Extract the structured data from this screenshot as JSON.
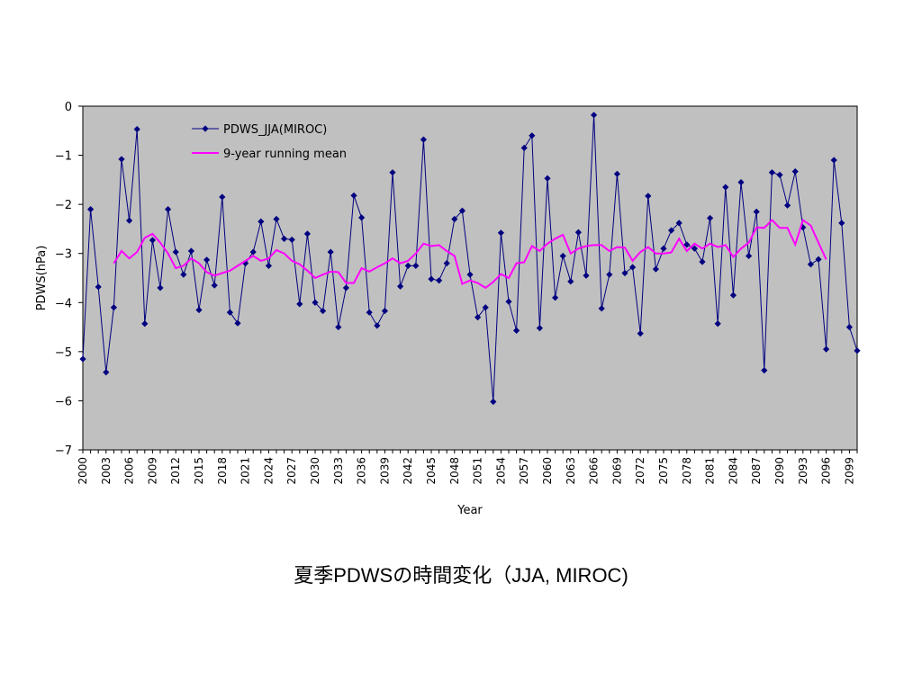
{
  "caption": "夏季PDWSの時間変化（JJA, MIROC)",
  "chart_data": {
    "type": "line",
    "xlabel": "Year",
    "ylabel": "PDWS(hPa)",
    "xlim": [
      2000,
      2100
    ],
    "ylim": [
      -7,
      0
    ],
    "yticks": [
      0,
      -1,
      -2,
      -3,
      -4,
      -5,
      -6,
      -7
    ],
    "xticks": [
      2000,
      2003,
      2006,
      2009,
      2012,
      2015,
      2018,
      2021,
      2024,
      2027,
      2030,
      2033,
      2036,
      2039,
      2042,
      2045,
      2048,
      2051,
      2054,
      2057,
      2060,
      2063,
      2066,
      2069,
      2072,
      2075,
      2078,
      2081,
      2084,
      2087,
      2090,
      2093,
      2096,
      2099
    ],
    "legend_position": "top-left",
    "background": "#c0c0c0",
    "series": [
      {
        "name": "PDWS_JJA(MIROC)",
        "color": "#000080",
        "marker": "diamond",
        "x": [
          2000,
          2001,
          2002,
          2003,
          2004,
          2005,
          2006,
          2007,
          2008,
          2009,
          2010,
          2011,
          2012,
          2013,
          2014,
          2015,
          2016,
          2017,
          2018,
          2019,
          2020,
          2021,
          2022,
          2023,
          2024,
          2025,
          2026,
          2027,
          2028,
          2029,
          2030,
          2031,
          2032,
          2033,
          2034,
          2035,
          2036,
          2037,
          2038,
          2039,
          2040,
          2041,
          2042,
          2043,
          2044,
          2045,
          2046,
          2047,
          2048,
          2049,
          2050,
          2051,
          2052,
          2053,
          2054,
          2055,
          2056,
          2057,
          2058,
          2059,
          2060,
          2061,
          2062,
          2063,
          2064,
          2065,
          2066,
          2067,
          2068,
          2069,
          2070,
          2071,
          2072,
          2073,
          2074,
          2075,
          2076,
          2077,
          2078,
          2079,
          2080,
          2081,
          2082,
          2083,
          2084,
          2085,
          2086,
          2087,
          2088,
          2089,
          2090,
          2091,
          2092,
          2093,
          2094,
          2095,
          2096,
          2097,
          2098,
          2099,
          2100
        ],
        "values": [
          -5.15,
          -2.1,
          -3.68,
          -5.42,
          -4.1,
          -1.08,
          -2.33,
          -0.47,
          -4.43,
          -2.73,
          -3.7,
          -2.1,
          -2.97,
          -3.43,
          -2.95,
          -4.15,
          -3.13,
          -3.65,
          -1.85,
          -4.2,
          -4.42,
          -3.2,
          -2.97,
          -2.35,
          -3.25,
          -2.3,
          -2.7,
          -2.72,
          -4.03,
          -2.6,
          -4.0,
          -4.17,
          -2.97,
          -4.5,
          -3.7,
          -1.82,
          -2.27,
          -4.2,
          -4.47,
          -4.17,
          -1.35,
          -3.67,
          -3.25,
          -3.25,
          -0.68,
          -3.52,
          -3.55,
          -3.2,
          -2.3,
          -2.13,
          -3.43,
          -4.3,
          -4.1,
          -6.02,
          -2.58,
          -3.98,
          -4.57,
          -0.85,
          -0.6,
          -4.52,
          -1.47,
          -3.9,
          -3.05,
          -3.57,
          -2.57,
          -3.45,
          -0.18,
          -4.12,
          -3.43,
          -1.38,
          -3.4,
          -3.28,
          -4.63,
          -1.83,
          -3.32,
          -2.9,
          -2.53,
          -2.38,
          -2.82,
          -2.9,
          -3.17,
          -2.28,
          -4.43,
          -1.65,
          -3.85,
          -1.55,
          -3.05,
          -2.15,
          -5.38,
          -1.35,
          -1.4,
          -2.02,
          -1.33,
          -2.47,
          -3.22,
          -3.12,
          -4.95,
          -1.1,
          -2.38,
          -4.5,
          -4.98
        ]
      },
      {
        "name": "9-year running mean",
        "color": "#ff00ff",
        "marker": "none",
        "x": [
          2004,
          2005,
          2006,
          2007,
          2008,
          2009,
          2010,
          2011,
          2012,
          2013,
          2014,
          2015,
          2016,
          2017,
          2018,
          2019,
          2020,
          2021,
          2022,
          2023,
          2024,
          2025,
          2026,
          2027,
          2028,
          2029,
          2030,
          2031,
          2032,
          2033,
          2034,
          2035,
          2036,
          2037,
          2038,
          2039,
          2040,
          2041,
          2042,
          2043,
          2044,
          2045,
          2046,
          2047,
          2048,
          2049,
          2050,
          2051,
          2052,
          2053,
          2054,
          2055,
          2056,
          2057,
          2058,
          2059,
          2060,
          2061,
          2062,
          2063,
          2064,
          2065,
          2066,
          2067,
          2068,
          2069,
          2070,
          2071,
          2072,
          2073,
          2074,
          2075,
          2076,
          2077,
          2078,
          2079,
          2080,
          2081,
          2082,
          2083,
          2084,
          2085,
          2086,
          2087,
          2088,
          2089,
          2090,
          2091,
          2092,
          2093,
          2094,
          2095,
          2096
        ],
        "values": [
          -3.2,
          -2.95,
          -3.1,
          -2.97,
          -2.68,
          -2.6,
          -2.78,
          -3.0,
          -3.3,
          -3.25,
          -3.1,
          -3.2,
          -3.38,
          -3.45,
          -3.4,
          -3.35,
          -3.25,
          -3.15,
          -3.05,
          -3.15,
          -3.1,
          -2.93,
          -3.0,
          -3.15,
          -3.22,
          -3.35,
          -3.5,
          -3.43,
          -3.37,
          -3.38,
          -3.6,
          -3.6,
          -3.3,
          -3.37,
          -3.28,
          -3.2,
          -3.1,
          -3.2,
          -3.15,
          -3.0,
          -2.8,
          -2.85,
          -2.83,
          -2.95,
          -3.05,
          -3.62,
          -3.55,
          -3.6,
          -3.7,
          -3.58,
          -3.42,
          -3.5,
          -3.2,
          -3.18,
          -2.85,
          -2.95,
          -2.8,
          -2.7,
          -2.62,
          -3.0,
          -2.9,
          -2.85,
          -2.83,
          -2.83,
          -2.95,
          -2.87,
          -2.88,
          -3.15,
          -2.97,
          -2.87,
          -3.0,
          -3.0,
          -2.98,
          -2.7,
          -2.95,
          -2.8,
          -2.9,
          -2.8,
          -2.87,
          -2.83,
          -3.07,
          -2.9,
          -2.78,
          -2.47,
          -2.48,
          -2.32,
          -2.48,
          -2.48,
          -2.82,
          -2.32,
          -2.43,
          -2.78,
          -3.12
        ]
      }
    ]
  }
}
